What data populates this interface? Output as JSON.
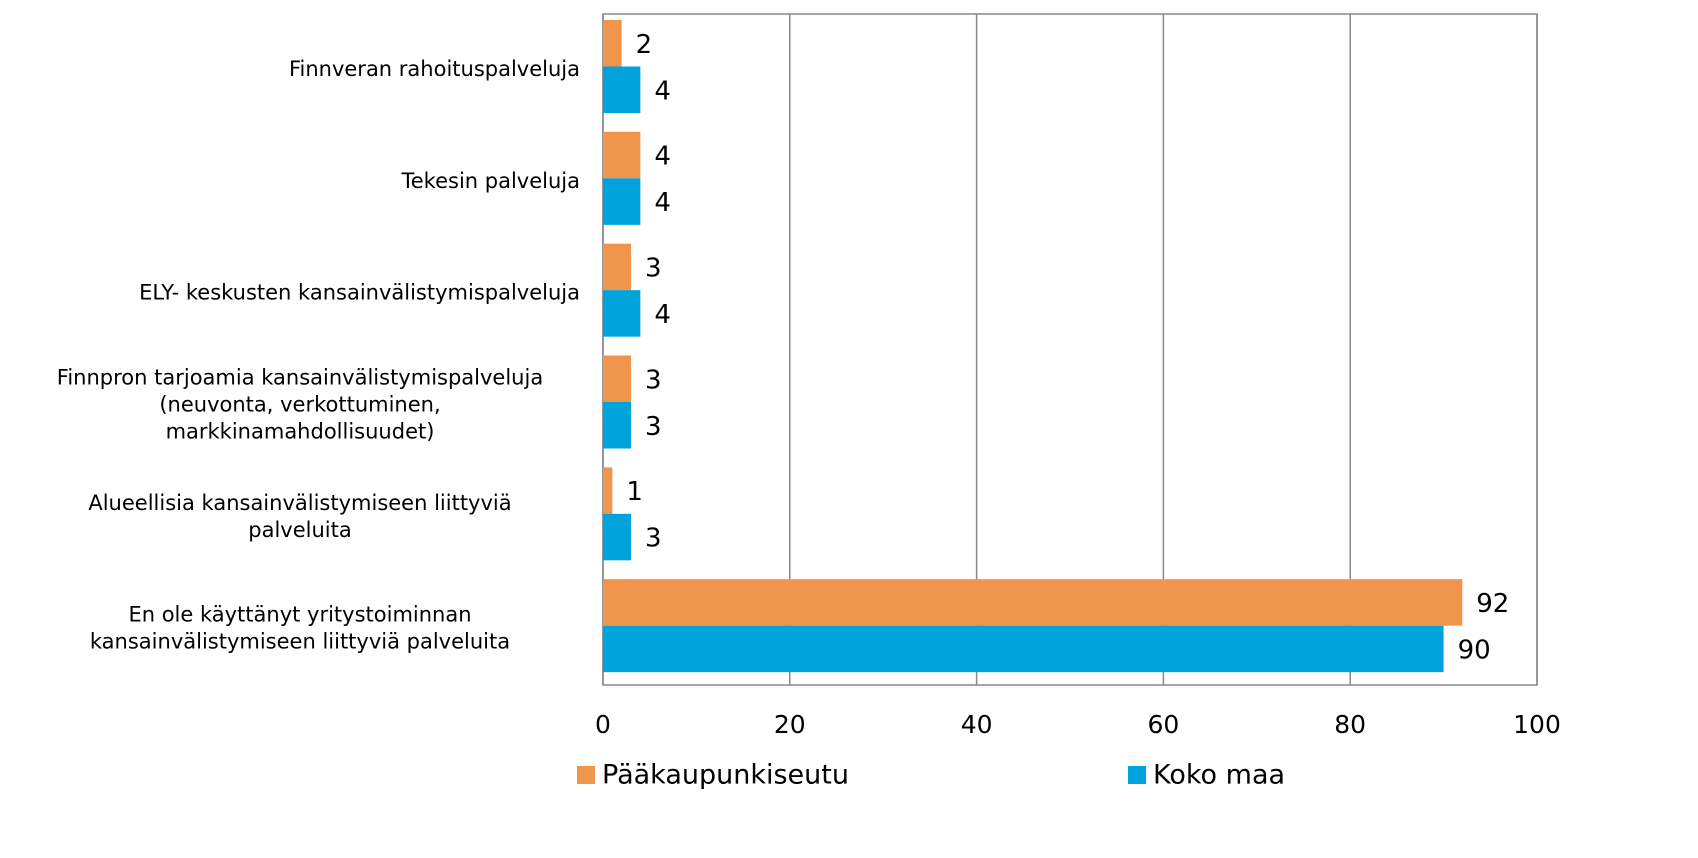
{
  "chart_data": {
    "type": "bar",
    "orientation": "horizontal",
    "categories": [
      "Finnveran rahoituspalveluja",
      "Tekesin palveluja",
      "ELY- keskusten kansainvälistymispalveluja",
      "Finnpron tarjoamia kansainvälistymispalveluja\n(neuvonta, verkottuminen,\nmarkkinamahdollisuudet)",
      "Alueellisia kansainvälistymiseen liittyviä\npalveluita",
      "En ole käyttänyt yritystoiminnan\nkansainvälistymiseen liittyviä palveluita"
    ],
    "series": [
      {
        "name": "Pääkaupunkiseutu",
        "color": "#f0954c",
        "values": [
          2,
          4,
          3,
          3,
          1,
          92
        ]
      },
      {
        "name": "Koko maa",
        "color": "#00a3dc",
        "values": [
          4,
          4,
          4,
          3,
          3,
          90
        ]
      }
    ],
    "xlim": [
      0,
      100
    ],
    "xticks": [
      0,
      20,
      40,
      60,
      80,
      100
    ],
    "grid": true,
    "legend": "bottom"
  }
}
